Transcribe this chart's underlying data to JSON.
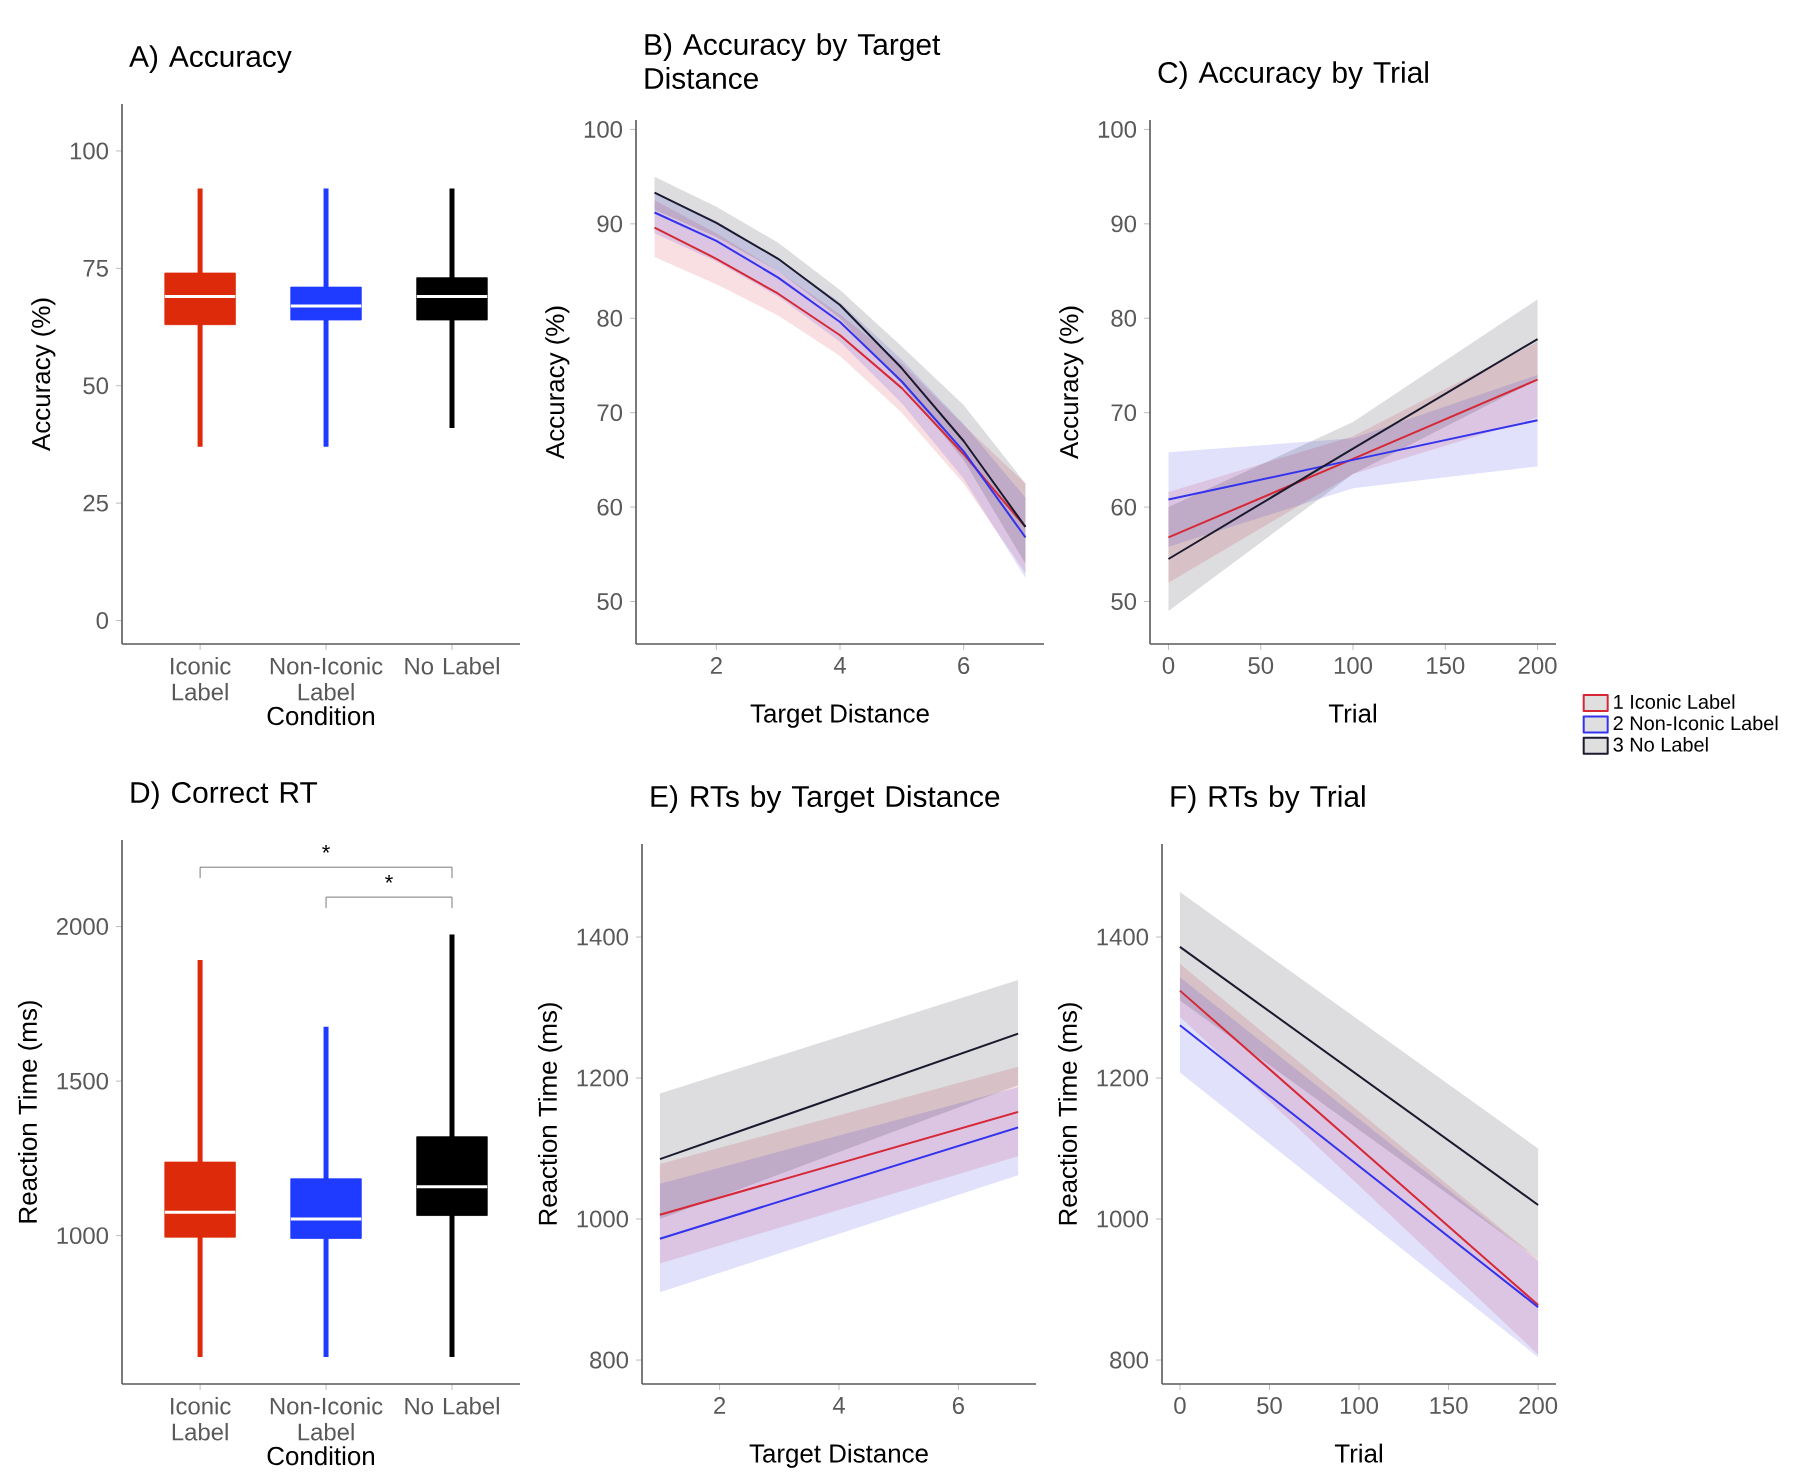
{
  "chart_data": [
    {
      "type": "box",
      "title": "A) Accuracy",
      "xlabel": "Condition",
      "ylabel": "Accuracy (%)",
      "categories": [
        "Iconic Label",
        "Non-Iconic Label",
        "No Label"
      ],
      "colors": [
        "#dd2a0b",
        "#1f3bff",
        "#000000"
      ],
      "ylim": [
        -5,
        110
      ],
      "yticks": [
        0,
        25,
        50,
        75,
        100
      ],
      "boxes": [
        {
          "low": 37,
          "q1": 63,
          "median": 69,
          "q3": 74,
          "high": 92
        },
        {
          "low": 37,
          "q1": 64,
          "median": 67,
          "q3": 71,
          "high": 92
        },
        {
          "low": 41,
          "q1": 64,
          "median": 69,
          "q3": 73,
          "high": 92
        }
      ]
    },
    {
      "type": "line",
      "title": "B) Accuracy by Target Distance",
      "xlabel": "Target Distance",
      "ylabel": "Accuracy (%)",
      "xlim": [
        0.7,
        7.3
      ],
      "ylim": [
        45.5,
        101
      ],
      "xticks": [
        2,
        4,
        6
      ],
      "yticks": [
        50,
        60,
        70,
        80,
        90,
        100
      ],
      "series": [
        {
          "color": "#d62836",
          "x": [
            1,
            2,
            3,
            4,
            5,
            6,
            7
          ],
          "values": [
            89.6,
            86.3,
            82.6,
            78.2,
            72.6,
            65.6,
            57.9
          ],
          "lower": [
            86.5,
            83.6,
            80.3,
            76,
            70,
            62.5,
            53
          ],
          "upper": [
            92.5,
            89,
            85,
            80.4,
            75.2,
            68.7,
            62.5
          ]
        },
        {
          "color": "#3333ee",
          "x": [
            1,
            2,
            3,
            4,
            5,
            6,
            7
          ],
          "values": [
            91.2,
            88.2,
            84.3,
            79.6,
            73.3,
            65.9,
            56.8
          ],
          "lower": [
            89,
            86,
            82.3,
            77.5,
            71,
            63,
            52.5
          ],
          "upper": [
            93.3,
            90.3,
            86.3,
            81.7,
            75.6,
            68.8,
            61
          ]
        },
        {
          "color": "#1a1a2e",
          "x": [
            1,
            2,
            3,
            4,
            5,
            6,
            7
          ],
          "values": [
            93.3,
            90.1,
            86.3,
            81.4,
            74.7,
            67,
            57.9
          ],
          "lower": [
            91.5,
            88.6,
            85,
            80,
            73,
            65,
            54
          ],
          "upper": [
            95,
            91.8,
            88,
            83,
            77,
            70.8,
            62.5
          ]
        }
      ]
    },
    {
      "type": "line",
      "title": "C) Accuracy by Trial",
      "xlabel": "Trial",
      "ylabel": "Accuracy (%)",
      "xlim": [
        -10,
        210
      ],
      "ylim": [
        45.5,
        101
      ],
      "xticks": [
        0,
        50,
        100,
        150,
        200
      ],
      "yticks": [
        50,
        60,
        70,
        80,
        90,
        100
      ],
      "legend": "right",
      "series": [
        {
          "name": "1 Iconic Label",
          "color": "#d62836",
          "x": [
            0,
            100,
            200
          ],
          "values": [
            56.8,
            65.1,
            73.5
          ],
          "lower": [
            52,
            63.5,
            69.5
          ],
          "upper": [
            61.6,
            67.5,
            77.5
          ]
        },
        {
          "name": "2 Non-Iconic Label",
          "color": "#3333ee",
          "x": [
            0,
            100,
            200
          ],
          "values": [
            60.8,
            65,
            69.2
          ],
          "lower": [
            55.8,
            62,
            64.3
          ],
          "upper": [
            65.8,
            67.3,
            74
          ]
        },
        {
          "name": "3 No Label",
          "color": "#1a1a2e",
          "x": [
            0,
            100,
            200
          ],
          "values": [
            54.5,
            66.2,
            77.8
          ],
          "lower": [
            49,
            63.5,
            73.5
          ],
          "upper": [
            60,
            69,
            82
          ]
        }
      ]
    },
    {
      "type": "box",
      "title": "D) Correct RT",
      "xlabel": "Condition",
      "ylabel": "Reaction Time (ms)",
      "categories": [
        "Iconic Label",
        "Non-Iconic Label",
        "No Label"
      ],
      "colors": [
        "#dd2a0b",
        "#1f3bff",
        "#000000"
      ],
      "ylim": [
        520,
        2280
      ],
      "yticks": [
        1000,
        1500,
        2000
      ],
      "annotations": [
        "*",
        "*"
      ],
      "boxes": [
        {
          "low": 607,
          "q1": 995,
          "median": 1076,
          "q3": 1238,
          "high": 1892
        },
        {
          "low": 607,
          "q1": 991,
          "median": 1054,
          "q3": 1184,
          "high": 1676
        },
        {
          "low": 607,
          "q1": 1065,
          "median": 1158,
          "q3": 1320,
          "high": 1974
        }
      ]
    },
    {
      "type": "line",
      "title": "E) RTs by Target Distance",
      "xlabel": "Target Distance",
      "ylabel": "Reaction Time (ms)",
      "xlim": [
        0.7,
        7.3
      ],
      "ylim": [
        766,
        1532
      ],
      "xticks": [
        2,
        4,
        6
      ],
      "yticks": [
        800,
        1000,
        1200,
        1400
      ],
      "series": [
        {
          "color": "#d62836",
          "x": [
            1,
            7
          ],
          "values": [
            1006,
            1152
          ],
          "lower": [
            937,
            1089
          ],
          "upper": [
            1078,
            1216
          ]
        },
        {
          "color": "#3333ee",
          "x": [
            1,
            7
          ],
          "values": [
            972,
            1130
          ],
          "lower": [
            896,
            1062
          ],
          "upper": [
            1050,
            1187
          ]
        },
        {
          "color": "#1a1a2e",
          "x": [
            1,
            7
          ],
          "values": [
            1085,
            1263
          ],
          "lower": [
            1000,
            1190
          ],
          "upper": [
            1178,
            1339
          ]
        }
      ]
    },
    {
      "type": "line",
      "title": "F) RTs by Trial",
      "xlabel": "Trial",
      "ylabel": "Reaction Time (ms)",
      "xlim": [
        -10,
        210
      ],
      "ylim": [
        766,
        1532
      ],
      "xticks": [
        0,
        50,
        100,
        150,
        200
      ],
      "yticks": [
        800,
        1000,
        1200,
        1400
      ],
      "series": [
        {
          "color": "#d62836",
          "x": [
            0,
            200
          ],
          "values": [
            1324,
            878
          ],
          "lower": [
            1287,
            808
          ],
          "upper": [
            1362,
            943
          ]
        },
        {
          "color": "#3333ee",
          "x": [
            0,
            200
          ],
          "values": [
            1275,
            875
          ],
          "lower": [
            1208,
            804
          ],
          "upper": [
            1343,
            941
          ]
        },
        {
          "color": "#1a1a2e",
          "x": [
            0,
            200
          ],
          "values": [
            1386,
            1020
          ],
          "lower": [
            1310,
            943
          ],
          "upper": [
            1464,
            1100
          ]
        }
      ]
    }
  ]
}
